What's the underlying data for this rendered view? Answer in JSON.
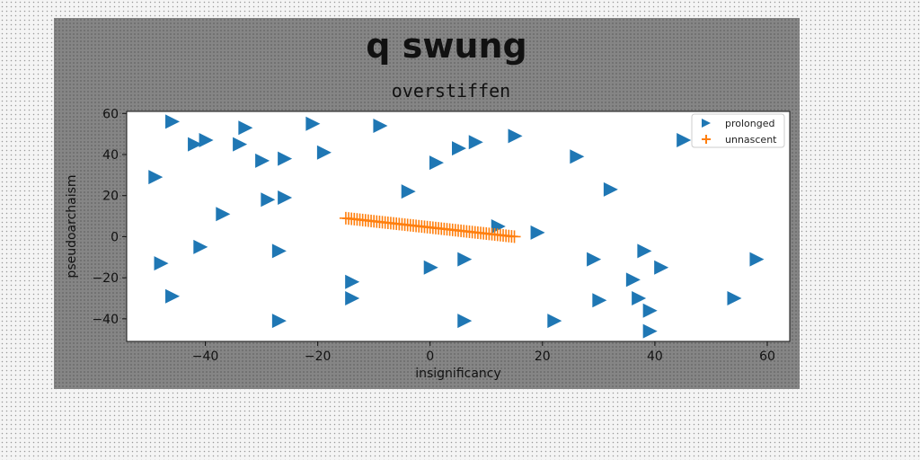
{
  "chart_data": {
    "type": "scatter",
    "suptitle": "q swung",
    "title": "overstiffen",
    "xlabel": "insignificancy",
    "ylabel": "pseudoarchaism",
    "xlim": [
      -54,
      64
    ],
    "ylim": [
      -51,
      61
    ],
    "xticks": [
      -40,
      -20,
      0,
      20,
      40,
      60
    ],
    "yticks": [
      -40,
      -20,
      0,
      20,
      40,
      60
    ],
    "grid": false,
    "legend_position": "top-right",
    "series": [
      {
        "name": "prolonged",
        "marker": "triangle-right",
        "color": "#1f77b4",
        "points": [
          [
            -46,
            56
          ],
          [
            -33,
            53
          ],
          [
            -21,
            55
          ],
          [
            -9,
            54
          ],
          [
            15,
            49
          ],
          [
            -42,
            45
          ],
          [
            -40,
            47
          ],
          [
            -34,
            45
          ],
          [
            -19,
            41
          ],
          [
            -30,
            37
          ],
          [
            -26,
            38
          ],
          [
            5,
            43
          ],
          [
            8,
            46
          ],
          [
            26,
            39
          ],
          [
            45,
            47
          ],
          [
            -49,
            29
          ],
          [
            1,
            36
          ],
          [
            -4,
            22
          ],
          [
            32,
            23
          ],
          [
            -29,
            18
          ],
          [
            -26,
            19
          ],
          [
            -37,
            11
          ],
          [
            12,
            5
          ],
          [
            19,
            2
          ],
          [
            -41,
            -5
          ],
          [
            -27,
            -7
          ],
          [
            38,
            -7
          ],
          [
            -48,
            -13
          ],
          [
            6,
            -11
          ],
          [
            29,
            -11
          ],
          [
            0,
            -15
          ],
          [
            41,
            -15
          ],
          [
            58,
            -11
          ],
          [
            -14,
            -22
          ],
          [
            36,
            -21
          ],
          [
            -46,
            -29
          ],
          [
            -14,
            -30
          ],
          [
            30,
            -31
          ],
          [
            37,
            -30
          ],
          [
            54,
            -30
          ],
          [
            39,
            -36
          ],
          [
            -27,
            -41
          ],
          [
            6,
            -41
          ],
          [
            22,
            -41
          ],
          [
            39,
            -46
          ]
        ]
      },
      {
        "name": "unnascent",
        "marker": "plus",
        "color": "#ff7f0e",
        "x_range": [
          -15,
          15
        ],
        "y_at_start": 9,
        "y_at_end": 0,
        "count": 61
      }
    ]
  }
}
